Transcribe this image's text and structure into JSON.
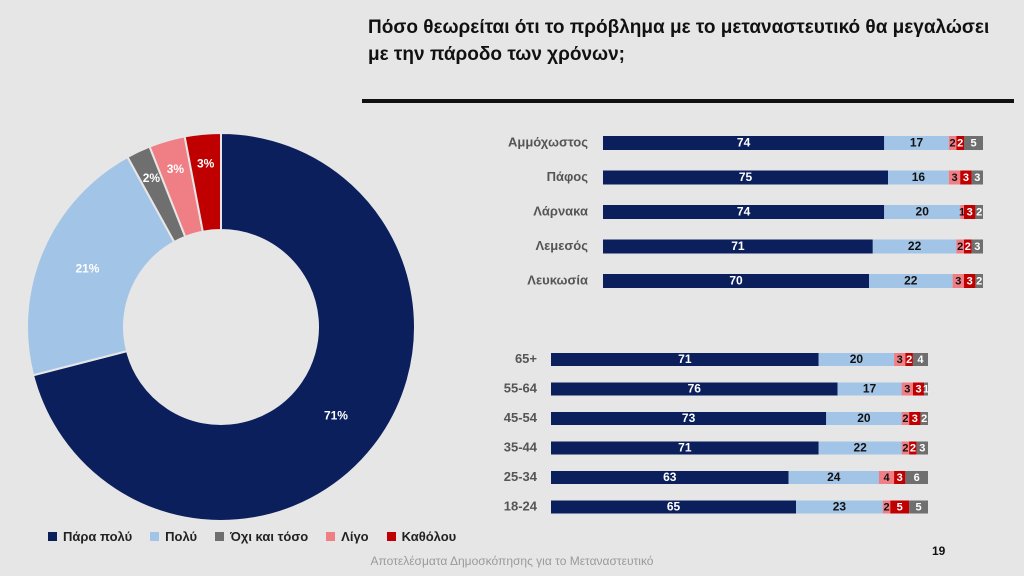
{
  "title": {
    "line1": "Πόσο θεωρείται ότι το πρόβλημα με το μεταναστευτικό θα μεγαλώσει",
    "line2": "με την πάροδο των χρόνων;"
  },
  "colors": {
    "para_poly": "#0a1f5c",
    "poly": "#a2c4e6",
    "oxi": "#6f6f6f",
    "ligo": "#f07f85",
    "katholou": "#c00000"
  },
  "legend": [
    {
      "label": "Πάρα πολύ",
      "color": "#0a1f5c"
    },
    {
      "label": "Πολύ",
      "color": "#a2c4e6"
    },
    {
      "label": "Όχι και τόσο",
      "color": "#6f6f6f"
    },
    {
      "label": "Λίγο",
      "color": "#f07f85"
    },
    {
      "label": "Καθόλου",
      "color": "#c00000"
    }
  ],
  "chart_data": [
    {
      "type": "pie",
      "categories": [
        "Πάρα πολύ",
        "Πολύ",
        "Όχι και τόσο",
        "Λίγο",
        "Καθόλου"
      ],
      "values": [
        71,
        21,
        2,
        3,
        3
      ],
      "labels": [
        "71%",
        "21%",
        "2%",
        "3%",
        "3%"
      ]
    },
    {
      "type": "bar",
      "orientation": "horizontal",
      "stacked": true,
      "categories": [
        "Αμμόχωστος",
        "Πάφος",
        "Λάρνακα",
        "Λεμεσός",
        "Λευκωσία"
      ],
      "series": [
        {
          "name": "Πάρα πολύ",
          "values": [
            74,
            75,
            74,
            71,
            70
          ]
        },
        {
          "name": "Πολύ",
          "values": [
            17,
            16,
            20,
            22,
            22
          ]
        },
        {
          "name": "Λίγο",
          "values": [
            2,
            3,
            1,
            2,
            3
          ]
        },
        {
          "name": "Καθόλου",
          "values": [
            2,
            3,
            3,
            2,
            3
          ]
        },
        {
          "name": "Όχι και τόσο",
          "values": [
            5,
            3,
            2,
            3,
            2
          ]
        }
      ]
    },
    {
      "type": "bar",
      "orientation": "horizontal",
      "stacked": true,
      "categories": [
        "65+",
        "55-64",
        "45-54",
        "35-44",
        "25-34",
        "18-24"
      ],
      "series": [
        {
          "name": "Πάρα πολύ",
          "values": [
            71,
            76,
            73,
            71,
            63,
            65
          ]
        },
        {
          "name": "Πολύ",
          "values": [
            20,
            17,
            20,
            22,
            24,
            23
          ]
        },
        {
          "name": "Λίγο",
          "values": [
            3,
            3,
            2,
            2,
            4,
            2
          ]
        },
        {
          "name": "Καθόλου",
          "values": [
            2,
            3,
            3,
            2,
            3,
            5
          ]
        },
        {
          "name": "Όχι και τόσο",
          "values": [
            4,
            1,
            2,
            3,
            6,
            5
          ]
        }
      ]
    }
  ],
  "footer": "Αποτελέσματα Δημοσκόπησης για το Μεταναστευτικό",
  "page_number": "19"
}
